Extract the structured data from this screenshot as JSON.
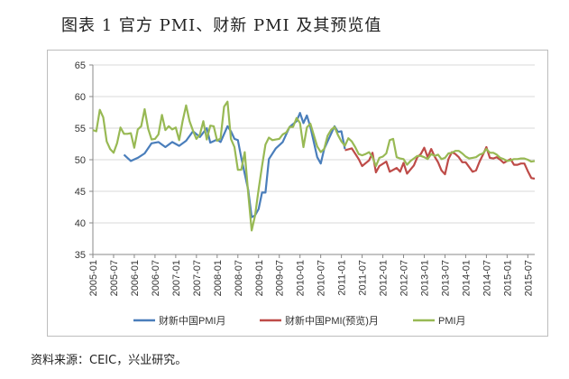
{
  "header": {
    "title": "图表 1   官方 PMI、财新 PMI 及其预览值"
  },
  "footer": {
    "source": "资料来源：CEIC，兴业研究。"
  },
  "chart_data": {
    "type": "line",
    "title": "",
    "xlabel": "",
    "ylabel": "",
    "ylim": [
      35,
      65
    ],
    "yticks": [
      35,
      40,
      45,
      50,
      55,
      60,
      65
    ],
    "x_start": "2005-01",
    "x_end": "2015-09",
    "x_tick_labels": [
      "2005-01",
      "2005-07",
      "2006-01",
      "2006-07",
      "2007-01",
      "2007-07",
      "2008-01",
      "2008-07",
      "2009-01",
      "2009-07",
      "2010-01",
      "2010-07",
      "2011-01",
      "2011-07",
      "2012-01",
      "2012-07",
      "2013-01",
      "2013-07",
      "2014-01",
      "2014-07",
      "2015-01",
      "2015-07"
    ],
    "grid": {
      "horizontal": true,
      "vertical": false
    },
    "legend_position": "bottom",
    "series": [
      {
        "name": "财新中国PMI月",
        "color": "#4a7ebb",
        "points": [
          [
            "2005-10",
            50.8
          ],
          [
            "2005-12",
            49.8
          ],
          [
            "2006-02",
            50.3
          ],
          [
            "2006-04",
            51.0
          ],
          [
            "2006-06",
            52.6
          ],
          [
            "2006-08",
            52.8
          ],
          [
            "2006-10",
            52.0
          ],
          [
            "2006-12",
            52.8
          ],
          [
            "2007-02",
            52.2
          ],
          [
            "2007-04",
            53.0
          ],
          [
            "2007-06",
            54.5
          ],
          [
            "2007-08",
            53.6
          ],
          [
            "2007-10",
            55.0
          ],
          [
            "2007-11",
            52.7
          ],
          [
            "2008-01",
            53.2
          ],
          [
            "2008-02",
            52.8
          ],
          [
            "2008-04",
            55.3
          ],
          [
            "2008-05",
            54.5
          ],
          [
            "2008-06",
            53.3
          ],
          [
            "2008-07",
            53.1
          ],
          [
            "2008-08",
            50.3
          ],
          [
            "2008-10",
            45.2
          ],
          [
            "2008-11",
            40.9
          ],
          [
            "2008-12",
            41.2
          ],
          [
            "2009-01",
            42.2
          ],
          [
            "2009-02",
            44.8
          ],
          [
            "2009-03",
            44.8
          ],
          [
            "2009-04",
            50.1
          ],
          [
            "2009-06",
            51.8
          ],
          [
            "2009-08",
            52.8
          ],
          [
            "2009-10",
            55.2
          ],
          [
            "2009-12",
            56.1
          ],
          [
            "2010-01",
            57.4
          ],
          [
            "2010-02",
            55.8
          ],
          [
            "2010-03",
            57.0
          ],
          [
            "2010-04",
            55.2
          ],
          [
            "2010-06",
            50.4
          ],
          [
            "2010-07",
            49.4
          ],
          [
            "2010-08",
            51.7
          ],
          [
            "2010-09",
            52.9
          ],
          [
            "2010-11",
            55.3
          ],
          [
            "2010-12",
            54.4
          ],
          [
            "2011-01",
            54.5
          ],
          [
            "2011-02",
            51.7
          ]
        ]
      },
      {
        "name": "财新中国PMI(预览)月",
        "color": "#be4b48",
        "points": [
          [
            "2011-02",
            51.5
          ],
          [
            "2011-04",
            51.8
          ],
          [
            "2011-06",
            50.1
          ],
          [
            "2011-07",
            49.0
          ],
          [
            "2011-09",
            49.9
          ],
          [
            "2011-10",
            51.1
          ],
          [
            "2011-11",
            48.0
          ],
          [
            "2011-12",
            49.0
          ],
          [
            "2012-02",
            49.7
          ],
          [
            "2012-03",
            48.1
          ],
          [
            "2012-05",
            48.7
          ],
          [
            "2012-06",
            48.1
          ],
          [
            "2012-07",
            49.5
          ],
          [
            "2012-08",
            47.8
          ],
          [
            "2012-10",
            49.1
          ],
          [
            "2012-11",
            50.4
          ],
          [
            "2012-12",
            50.9
          ],
          [
            "2013-01",
            51.9
          ],
          [
            "2013-02",
            50.4
          ],
          [
            "2013-03",
            51.7
          ],
          [
            "2013-04",
            50.5
          ],
          [
            "2013-05",
            49.6
          ],
          [
            "2013-06",
            48.3
          ],
          [
            "2013-07",
            47.7
          ],
          [
            "2013-08",
            50.1
          ],
          [
            "2013-09",
            51.2
          ],
          [
            "2013-10",
            50.9
          ],
          [
            "2013-11",
            50.4
          ],
          [
            "2013-12",
            49.6
          ],
          [
            "2014-01",
            49.6
          ],
          [
            "2014-03",
            48.1
          ],
          [
            "2014-04",
            48.3
          ],
          [
            "2014-05",
            49.7
          ],
          [
            "2014-06",
            50.8
          ],
          [
            "2014-07",
            52.0
          ],
          [
            "2014-08",
            50.3
          ],
          [
            "2014-09",
            50.2
          ],
          [
            "2014-10",
            50.4
          ],
          [
            "2014-11",
            50.0
          ],
          [
            "2014-12",
            49.5
          ],
          [
            "2015-01",
            49.8
          ],
          [
            "2015-02",
            50.1
          ],
          [
            "2015-03",
            49.2
          ],
          [
            "2015-04",
            49.2
          ],
          [
            "2015-05",
            49.4
          ],
          [
            "2015-06",
            49.4
          ],
          [
            "2015-07",
            48.2
          ],
          [
            "2015-08",
            47.1
          ],
          [
            "2015-09",
            47.0
          ]
        ]
      },
      {
        "name": "PMI月",
        "color": "#98b954",
        "points": [
          [
            "2005-01",
            54.7
          ],
          [
            "2005-02",
            54.5
          ],
          [
            "2005-03",
            57.9
          ],
          [
            "2005-04",
            56.7
          ],
          [
            "2005-05",
            52.9
          ],
          [
            "2005-06",
            51.7
          ],
          [
            "2005-07",
            51.1
          ],
          [
            "2005-08",
            52.6
          ],
          [
            "2005-09",
            55.1
          ],
          [
            "2005-10",
            54.1
          ],
          [
            "2005-11",
            54.1
          ],
          [
            "2005-12",
            54.2
          ],
          [
            "2006-01",
            51.9
          ],
          [
            "2006-02",
            54.8
          ],
          [
            "2006-03",
            55.3
          ],
          [
            "2006-04",
            58.0
          ],
          [
            "2006-05",
            54.9
          ],
          [
            "2006-06",
            53.2
          ],
          [
            "2006-07",
            53.3
          ],
          [
            "2006-08",
            54.0
          ],
          [
            "2006-09",
            57.1
          ],
          [
            "2006-10",
            54.7
          ],
          [
            "2006-11",
            55.3
          ],
          [
            "2006-12",
            54.8
          ],
          [
            "2007-01",
            55.1
          ],
          [
            "2007-02",
            53.1
          ],
          [
            "2007-03",
            56.1
          ],
          [
            "2007-04",
            58.6
          ],
          [
            "2007-05",
            56.1
          ],
          [
            "2007-06",
            54.6
          ],
          [
            "2007-07",
            53.3
          ],
          [
            "2007-08",
            54.0
          ],
          [
            "2007-09",
            56.1
          ],
          [
            "2007-10",
            53.2
          ],
          [
            "2007-11",
            55.4
          ],
          [
            "2007-12",
            55.3
          ],
          [
            "2008-01",
            53.0
          ],
          [
            "2008-02",
            53.4
          ],
          [
            "2008-03",
            58.4
          ],
          [
            "2008-04",
            59.2
          ],
          [
            "2008-05",
            53.3
          ],
          [
            "2008-06",
            52.0
          ],
          [
            "2008-07",
            48.4
          ],
          [
            "2008-08",
            48.4
          ],
          [
            "2008-09",
            51.2
          ],
          [
            "2008-10",
            44.6
          ],
          [
            "2008-11",
            38.8
          ],
          [
            "2008-12",
            41.2
          ],
          [
            "2009-01",
            45.3
          ],
          [
            "2009-02",
            49.0
          ],
          [
            "2009-03",
            52.4
          ],
          [
            "2009-04",
            53.5
          ],
          [
            "2009-05",
            53.1
          ],
          [
            "2009-06",
            53.2
          ],
          [
            "2009-07",
            53.3
          ],
          [
            "2009-08",
            54.0
          ],
          [
            "2009-09",
            54.3
          ],
          [
            "2009-10",
            55.2
          ],
          [
            "2009-11",
            55.2
          ],
          [
            "2009-12",
            56.6
          ],
          [
            "2010-01",
            55.8
          ],
          [
            "2010-02",
            52.0
          ],
          [
            "2010-03",
            55.1
          ],
          [
            "2010-04",
            55.7
          ],
          [
            "2010-05",
            53.9
          ],
          [
            "2010-06",
            52.1
          ],
          [
            "2010-07",
            51.2
          ],
          [
            "2010-08",
            51.7
          ],
          [
            "2010-09",
            53.8
          ],
          [
            "2010-10",
            54.7
          ],
          [
            "2010-11",
            55.2
          ],
          [
            "2010-12",
            53.9
          ],
          [
            "2011-01",
            52.9
          ],
          [
            "2011-02",
            52.2
          ],
          [
            "2011-03",
            53.4
          ],
          [
            "2011-04",
            52.9
          ],
          [
            "2011-05",
            52.0
          ],
          [
            "2011-06",
            50.9
          ],
          [
            "2011-07",
            50.7
          ],
          [
            "2011-08",
            50.9
          ],
          [
            "2011-09",
            51.2
          ],
          [
            "2011-10",
            50.4
          ],
          [
            "2011-11",
            49.0
          ],
          [
            "2011-12",
            50.3
          ],
          [
            "2012-01",
            50.5
          ],
          [
            "2012-02",
            51.0
          ],
          [
            "2012-03",
            53.1
          ],
          [
            "2012-04",
            53.3
          ],
          [
            "2012-05",
            50.4
          ],
          [
            "2012-06",
            50.2
          ],
          [
            "2012-07",
            50.1
          ],
          [
            "2012-08",
            49.2
          ],
          [
            "2012-09",
            49.8
          ],
          [
            "2012-10",
            50.2
          ],
          [
            "2012-11",
            50.6
          ],
          [
            "2012-12",
            50.6
          ],
          [
            "2013-01",
            50.4
          ],
          [
            "2013-02",
            50.1
          ],
          [
            "2013-03",
            50.9
          ],
          [
            "2013-04",
            50.6
          ],
          [
            "2013-05",
            50.8
          ],
          [
            "2013-06",
            50.1
          ],
          [
            "2013-07",
            50.3
          ],
          [
            "2013-08",
            51.0
          ],
          [
            "2013-09",
            51.1
          ],
          [
            "2013-10",
            51.4
          ],
          [
            "2013-11",
            51.4
          ],
          [
            "2013-12",
            51.0
          ],
          [
            "2014-01",
            50.5
          ],
          [
            "2014-02",
            50.2
          ],
          [
            "2014-03",
            50.3
          ],
          [
            "2014-04",
            50.4
          ],
          [
            "2014-05",
            50.8
          ],
          [
            "2014-06",
            51.0
          ],
          [
            "2014-07",
            51.7
          ],
          [
            "2014-08",
            51.1
          ],
          [
            "2014-09",
            51.1
          ],
          [
            "2014-10",
            50.8
          ],
          [
            "2014-11",
            50.3
          ],
          [
            "2014-12",
            50.1
          ],
          [
            "2015-01",
            49.8
          ],
          [
            "2015-02",
            49.9
          ],
          [
            "2015-03",
            50.1
          ],
          [
            "2015-04",
            50.1
          ],
          [
            "2015-05",
            50.2
          ],
          [
            "2015-06",
            50.2
          ],
          [
            "2015-07",
            50.0
          ],
          [
            "2015-08",
            49.7
          ],
          [
            "2015-09",
            49.8
          ]
        ]
      }
    ]
  }
}
